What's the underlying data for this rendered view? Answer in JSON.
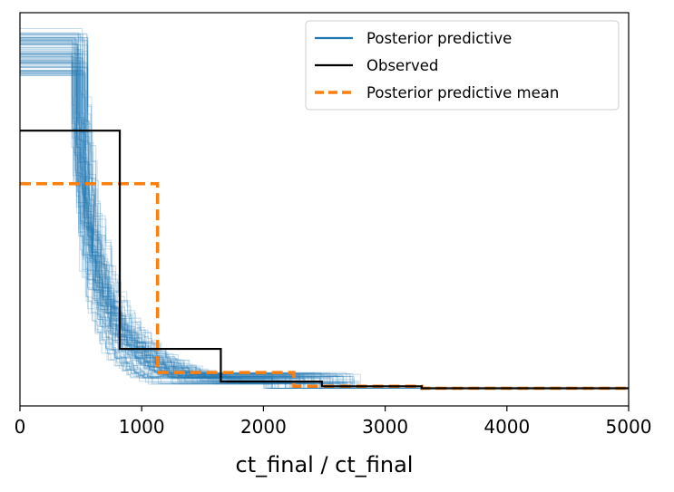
{
  "chart_data": {
    "type": "line",
    "xlabel": "ct_final / ct_final",
    "ylabel": "",
    "xlim": [
      0,
      5000
    ],
    "ylim": [
      0,
      1
    ],
    "y_ticks_shown": false,
    "grid": false,
    "x_ticks": [
      "0",
      "1000",
      "2000",
      "3000",
      "4000",
      "5000"
    ],
    "x_tick_values": [
      0,
      1000,
      2000,
      3000,
      4000,
      5000
    ],
    "legend_position": "top-right",
    "legend": [
      {
        "label": "Posterior predictive",
        "style": "solid",
        "color": "#1f77b4"
      },
      {
        "label": "Observed",
        "style": "solid",
        "color": "#000000"
      },
      {
        "label": "Posterior predictive mean",
        "style": "dashed",
        "color": "#ff7f0e"
      }
    ],
    "series": [
      {
        "name": "Observed",
        "color": "#000000",
        "step": true,
        "x": [
          0,
          820,
          820,
          1650,
          1650,
          2480,
          2480,
          3300,
          3300,
          5000
        ],
        "y": [
          0.7,
          0.7,
          0.145,
          0.145,
          0.062,
          0.062,
          0.05,
          0.05,
          0.045,
          0.045
        ]
      },
      {
        "name": "Posterior predictive mean",
        "color": "#ff7f0e",
        "dashed": true,
        "step": true,
        "x": [
          0,
          1130,
          1130,
          1130,
          1130,
          2250,
          2250,
          2250,
          2250,
          3300,
          3300,
          5000
        ],
        "y": [
          0.565,
          0.565,
          0.445,
          0.445,
          0.085,
          0.085,
          0.068,
          0.068,
          0.05,
          0.05,
          0.045,
          0.045
        ]
      }
    ],
    "posterior_predictive_ensemble": {
      "name": "Posterior predictive",
      "color": "#1f77b4",
      "opacity": 0.25,
      "count": 90,
      "step": true,
      "y_start": 0.96,
      "y_end": 0.045,
      "x_start_range": [
        420,
        560
      ],
      "x_mid_range": [
        500,
        1200
      ],
      "x_tail_range": [
        2000,
        2800
      ]
    }
  }
}
